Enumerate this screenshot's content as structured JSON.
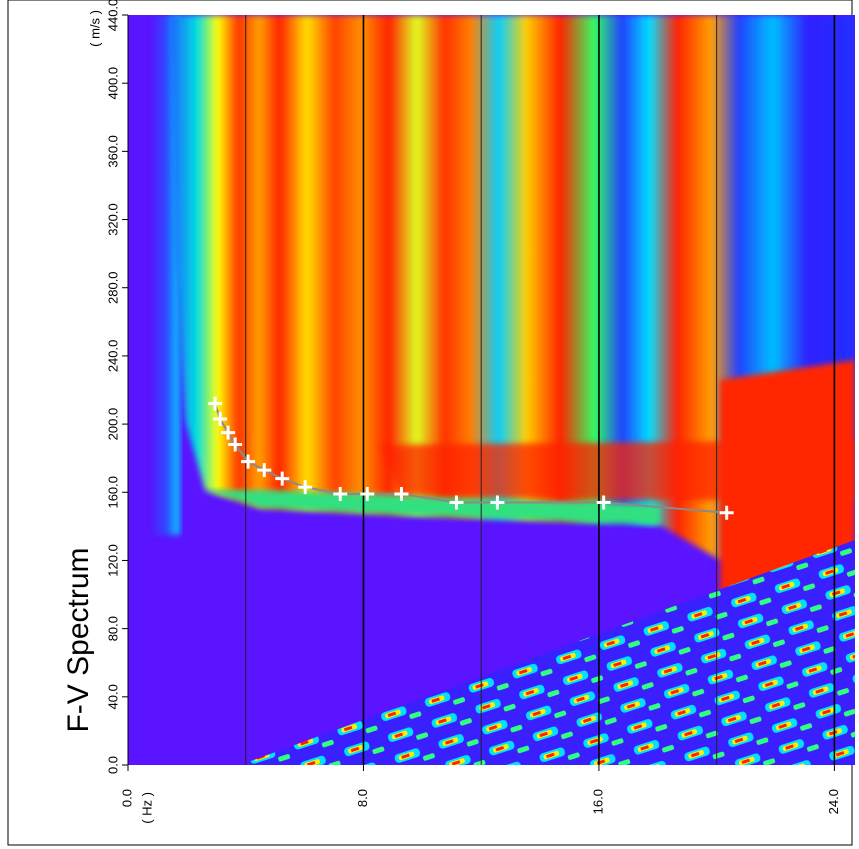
{
  "chart_data": {
    "type": "line",
    "title": "F-V Spectrum",
    "x_unit": "( Hz )",
    "y_unit": "( m/s )",
    "x": [
      2.96,
      3.13,
      3.4,
      3.64,
      4.08,
      4.63,
      5.24,
      6.02,
      7.21,
      8.13,
      9.29,
      11.16,
      12.55,
      16.16,
      20.34
    ],
    "series": [
      {
        "color": "#ffffff",
        "line_color": "#8a8a8a",
        "values": [
          212,
          203,
          195,
          188,
          178,
          173,
          168,
          163,
          159,
          159,
          159,
          154,
          154,
          154,
          148
        ]
      }
    ],
    "xlim": [
      0,
      24.7
    ],
    "ylim": [
      0,
      440
    ],
    "xticks": [
      {
        "value": 0,
        "label": "0.0"
      },
      {
        "value": 8,
        "label": "8.0"
      },
      {
        "value": 16,
        "label": "16.0"
      },
      {
        "value": 24,
        "label": "24.0"
      }
    ],
    "x_minor_ticks": [
      4,
      12,
      20
    ],
    "yticks": [
      {
        "value": 0,
        "label": "0.0"
      },
      {
        "value": 40,
        "label": "40.0"
      },
      {
        "value": 80,
        "label": "80.0"
      },
      {
        "value": 120,
        "label": "120.0"
      },
      {
        "value": 160,
        "label": "160.0"
      },
      {
        "value": 200,
        "label": "200.0"
      },
      {
        "value": 240,
        "label": "240.0"
      },
      {
        "value": 280,
        "label": "280.0"
      },
      {
        "value": 320,
        "label": "320.0"
      },
      {
        "value": 360,
        "label": "360.0"
      },
      {
        "value": 400,
        "label": "400.0"
      },
      {
        "value": 440,
        "label": "440.0"
      }
    ],
    "grid": true
  }
}
